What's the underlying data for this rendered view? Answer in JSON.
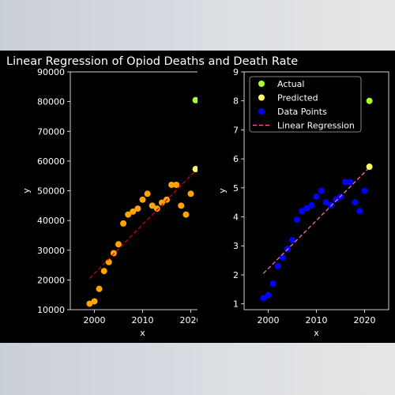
{
  "figure": {
    "title": "Linear Regression of Opiod Deaths and Death Rate",
    "background": "#000000",
    "foreground": "#ffffff"
  },
  "chart_data": [
    {
      "type": "scatter",
      "xlabel": "x",
      "ylabel": "y",
      "xlim": [
        1995,
        2025
      ],
      "ylim": [
        10000,
        90000
      ],
      "xticks": [
        2000,
        2010,
        2020
      ],
      "yticks": [
        10000,
        20000,
        30000,
        40000,
        50000,
        60000,
        70000,
        80000,
        90000
      ],
      "series": [
        {
          "type": "scatter",
          "color": "#ffa500",
          "x": [
            1999,
            2000,
            2001,
            2002,
            2003,
            2004,
            2005,
            2006,
            2007,
            2008,
            2009,
            2010,
            2011,
            2012,
            2013,
            2014,
            2015,
            2016,
            2017,
            2018,
            2019,
            2020
          ],
          "y": [
            12000,
            12800,
            17000,
            23000,
            26000,
            29000,
            32000,
            39000,
            42000,
            43000,
            44000,
            47000,
            49000,
            45000,
            44000,
            46000,
            47000,
            52000,
            52000,
            45000,
            42000,
            49000
          ]
        },
        {
          "type": "line",
          "style": "dashed",
          "color": "#cc0000",
          "x": [
            1999,
            2021
          ],
          "y": [
            20500,
            56800
          ]
        },
        {
          "type": "scatter",
          "color": "#adff2f",
          "x": [
            2021
          ],
          "y": [
            80500
          ]
        },
        {
          "type": "scatter",
          "color": "#ffff66",
          "x": [
            2021
          ],
          "y": [
            57300
          ]
        }
      ]
    },
    {
      "type": "scatter",
      "xlabel": "x",
      "ylabel": "y",
      "xlim": [
        1995,
        2025
      ],
      "ylim": [
        0.8,
        9
      ],
      "xticks": [
        2000,
        2010,
        2020
      ],
      "yticks": [
        1,
        2,
        3,
        4,
        5,
        6,
        7,
        8,
        9
      ],
      "legend": {
        "position": "top-left",
        "entries": [
          {
            "label": "Actual",
            "marker": "dot",
            "color": "#adff2f"
          },
          {
            "label": "Predicted",
            "marker": "dot",
            "color": "#ffff66"
          },
          {
            "label": "Data Points",
            "marker": "dot",
            "color": "#0000ff"
          },
          {
            "label": "Linear Regression",
            "marker": "dash",
            "color": "#ff69b4"
          }
        ]
      },
      "series": [
        {
          "name": "Data Points",
          "type": "scatter",
          "color": "#0000ff",
          "x": [
            1999,
            2000,
            2001,
            2002,
            2003,
            2004,
            2005,
            2006,
            2007,
            2008,
            2009,
            2010,
            2011,
            2012,
            2013,
            2014,
            2015,
            2016,
            2017,
            2018,
            2019,
            2020
          ],
          "y": [
            1.2,
            1.3,
            1.7,
            2.3,
            2.6,
            2.9,
            3.2,
            3.9,
            4.2,
            4.3,
            4.4,
            4.7,
            4.9,
            4.5,
            4.4,
            4.6,
            4.7,
            5.2,
            5.2,
            4.5,
            4.2,
            4.9
          ]
        },
        {
          "name": "Linear Regression",
          "type": "line",
          "style": "dashed",
          "color": "#ff69b4",
          "x": [
            1999,
            2021
          ],
          "y": [
            2.05,
            5.7
          ]
        },
        {
          "name": "Actual",
          "type": "scatter",
          "color": "#adff2f",
          "x": [
            2021
          ],
          "y": [
            8.0
          ]
        },
        {
          "name": "Predicted",
          "type": "scatter",
          "color": "#ffff66",
          "x": [
            2021
          ],
          "y": [
            5.73
          ]
        }
      ]
    }
  ]
}
